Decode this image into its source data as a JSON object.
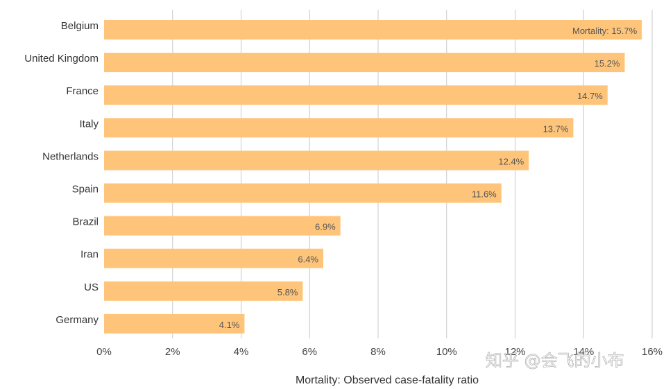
{
  "chart_data": {
    "type": "bar",
    "orientation": "horizontal",
    "categories": [
      "Belgium",
      "United Kingdom",
      "France",
      "Italy",
      "Netherlands",
      "Spain",
      "Brazil",
      "Iran",
      "US",
      "Germany"
    ],
    "values": [
      15.7,
      15.2,
      14.7,
      13.7,
      12.4,
      11.6,
      6.9,
      6.4,
      5.8,
      4.1
    ],
    "value_labels": [
      "Mortality: 15.7%",
      "15.2%",
      "14.7%",
      "13.7%",
      "12.4%",
      "11.6%",
      "6.9%",
      "6.4%",
      "5.8%",
      "4.1%"
    ],
    "xlabel": "Mortality: Observed case-fatality ratio",
    "ylabel": "",
    "xlim": [
      0,
      16
    ],
    "xticks": [
      0,
      2,
      4,
      6,
      8,
      10,
      12,
      14,
      16
    ],
    "xtick_labels": [
      "0%",
      "2%",
      "4%",
      "6%",
      "8%",
      "10%",
      "12%",
      "14%",
      "16%"
    ],
    "grid": true,
    "legend": null
  },
  "colors": {
    "bar": "#fec57a",
    "grid": "#c8c8c8"
  },
  "watermark": "知乎 @会飞的小布"
}
